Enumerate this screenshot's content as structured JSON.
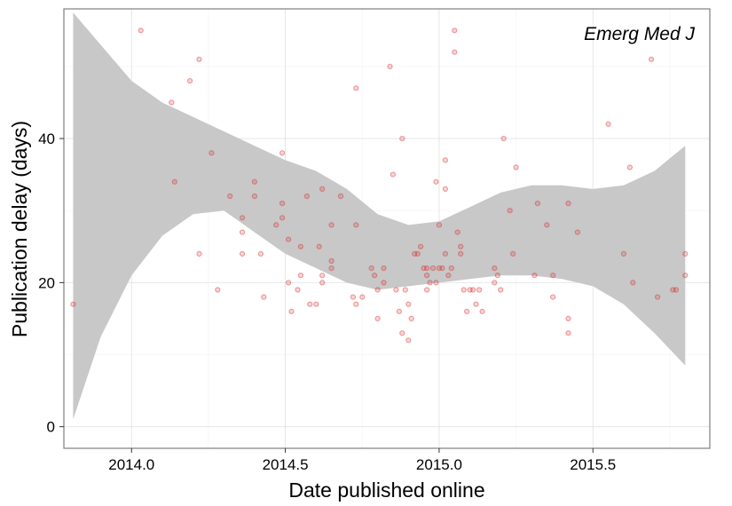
{
  "chart_data": {
    "type": "scatter",
    "title": "",
    "panel_label": "Emerg Med J",
    "xlabel": "Date published online",
    "ylabel": "Publication delay (days)",
    "xlim": [
      2013.78,
      2015.88
    ],
    "ylim": [
      -3,
      58
    ],
    "x_ticks": [
      2014.0,
      2014.5,
      2015.0,
      2015.5
    ],
    "x_tick_labels": [
      "2014.0",
      "2014.5",
      "2015.0",
      "2015.5"
    ],
    "y_ticks": [
      0,
      20,
      40
    ],
    "y_tick_labels": [
      "0",
      "20",
      "40"
    ],
    "grid": true,
    "point_color": "#d62728",
    "band_color": "#c8c8c8",
    "points": [
      [
        2013.81,
        17
      ],
      [
        2014.03,
        55
      ],
      [
        2014.13,
        45
      ],
      [
        2014.14,
        34
      ],
      [
        2014.19,
        48
      ],
      [
        2014.22,
        51
      ],
      [
        2014.22,
        24
      ],
      [
        2014.26,
        38
      ],
      [
        2014.28,
        19
      ],
      [
        2014.32,
        32
      ],
      [
        2014.36,
        24
      ],
      [
        2014.36,
        27
      ],
      [
        2014.36,
        29
      ],
      [
        2014.4,
        34
      ],
      [
        2014.4,
        32
      ],
      [
        2014.42,
        24
      ],
      [
        2014.43,
        18
      ],
      [
        2014.47,
        28
      ],
      [
        2014.49,
        38
      ],
      [
        2014.49,
        31
      ],
      [
        2014.49,
        29
      ],
      [
        2014.51,
        20
      ],
      [
        2014.51,
        26
      ],
      [
        2014.52,
        16
      ],
      [
        2014.54,
        19
      ],
      [
        2014.55,
        25
      ],
      [
        2014.55,
        21
      ],
      [
        2014.57,
        32
      ],
      [
        2014.58,
        17
      ],
      [
        2014.6,
        17
      ],
      [
        2014.61,
        25
      ],
      [
        2014.62,
        21
      ],
      [
        2014.62,
        20
      ],
      [
        2014.62,
        33
      ],
      [
        2014.65,
        23
      ],
      [
        2014.65,
        22
      ],
      [
        2014.65,
        28
      ],
      [
        2014.68,
        32
      ],
      [
        2014.72,
        18
      ],
      [
        2014.73,
        17
      ],
      [
        2014.73,
        47
      ],
      [
        2014.73,
        28
      ],
      [
        2014.75,
        18
      ],
      [
        2014.78,
        22
      ],
      [
        2014.79,
        21
      ],
      [
        2014.8,
        15
      ],
      [
        2014.8,
        19
      ],
      [
        2014.82,
        20
      ],
      [
        2014.82,
        22
      ],
      [
        2014.84,
        50
      ],
      [
        2014.85,
        35
      ],
      [
        2014.86,
        19
      ],
      [
        2014.87,
        16
      ],
      [
        2014.88,
        40
      ],
      [
        2014.88,
        13
      ],
      [
        2014.89,
        19
      ],
      [
        2014.9,
        17
      ],
      [
        2014.9,
        12
      ],
      [
        2014.91,
        15
      ],
      [
        2014.92,
        24
      ],
      [
        2014.93,
        24
      ],
      [
        2014.94,
        25
      ],
      [
        2014.95,
        22
      ],
      [
        2014.96,
        19
      ],
      [
        2014.96,
        21
      ],
      [
        2014.96,
        22
      ],
      [
        2014.97,
        20
      ],
      [
        2014.98,
        22
      ],
      [
        2014.99,
        34
      ],
      [
        2014.99,
        20
      ],
      [
        2015.0,
        28
      ],
      [
        2015.0,
        22
      ],
      [
        2015.01,
        22
      ],
      [
        2015.02,
        33
      ],
      [
        2015.02,
        37
      ],
      [
        2015.02,
        24
      ],
      [
        2015.03,
        21
      ],
      [
        2015.04,
        22
      ],
      [
        2015.05,
        55
      ],
      [
        2015.05,
        52
      ],
      [
        2015.06,
        27
      ],
      [
        2015.07,
        24
      ],
      [
        2015.07,
        25
      ],
      [
        2015.08,
        19
      ],
      [
        2015.09,
        16
      ],
      [
        2015.1,
        19
      ],
      [
        2015.11,
        19
      ],
      [
        2015.12,
        17
      ],
      [
        2015.13,
        19
      ],
      [
        2015.14,
        16
      ],
      [
        2015.18,
        20
      ],
      [
        2015.18,
        22
      ],
      [
        2015.19,
        21
      ],
      [
        2015.2,
        19
      ],
      [
        2015.21,
        40
      ],
      [
        2015.23,
        30
      ],
      [
        2015.24,
        24
      ],
      [
        2015.25,
        36
      ],
      [
        2015.31,
        21
      ],
      [
        2015.32,
        31
      ],
      [
        2015.35,
        28
      ],
      [
        2015.37,
        21
      ],
      [
        2015.37,
        18
      ],
      [
        2015.42,
        31
      ],
      [
        2015.42,
        15
      ],
      [
        2015.42,
        13
      ],
      [
        2015.45,
        27
      ],
      [
        2015.55,
        42
      ],
      [
        2015.6,
        24
      ],
      [
        2015.62,
        36
      ],
      [
        2015.63,
        20
      ],
      [
        2015.69,
        51
      ],
      [
        2015.71,
        18
      ],
      [
        2015.76,
        19
      ],
      [
        2015.77,
        19
      ],
      [
        2015.8,
        24
      ],
      [
        2015.8,
        21
      ]
    ],
    "confidence_band": {
      "x": [
        2013.81,
        2013.9,
        2014.0,
        2014.1,
        2014.2,
        2014.3,
        2014.4,
        2014.5,
        2014.6,
        2014.7,
        2014.8,
        2014.9,
        2015.0,
        2015.1,
        2015.2,
        2015.3,
        2015.4,
        2015.5,
        2015.6,
        2015.7,
        2015.8
      ],
      "upper": [
        57.5,
        53,
        48,
        45,
        43,
        41,
        39,
        37,
        35.5,
        33,
        29.5,
        28,
        28.5,
        30.5,
        32.5,
        33.5,
        33.5,
        33,
        33.5,
        35.5,
        39
      ],
      "lower": [
        1,
        12.5,
        21,
        26.5,
        29.5,
        30,
        27,
        24,
        22,
        20,
        19,
        19.5,
        20,
        20.5,
        21,
        21,
        20.5,
        19.5,
        17,
        13,
        8.5
      ]
    }
  }
}
